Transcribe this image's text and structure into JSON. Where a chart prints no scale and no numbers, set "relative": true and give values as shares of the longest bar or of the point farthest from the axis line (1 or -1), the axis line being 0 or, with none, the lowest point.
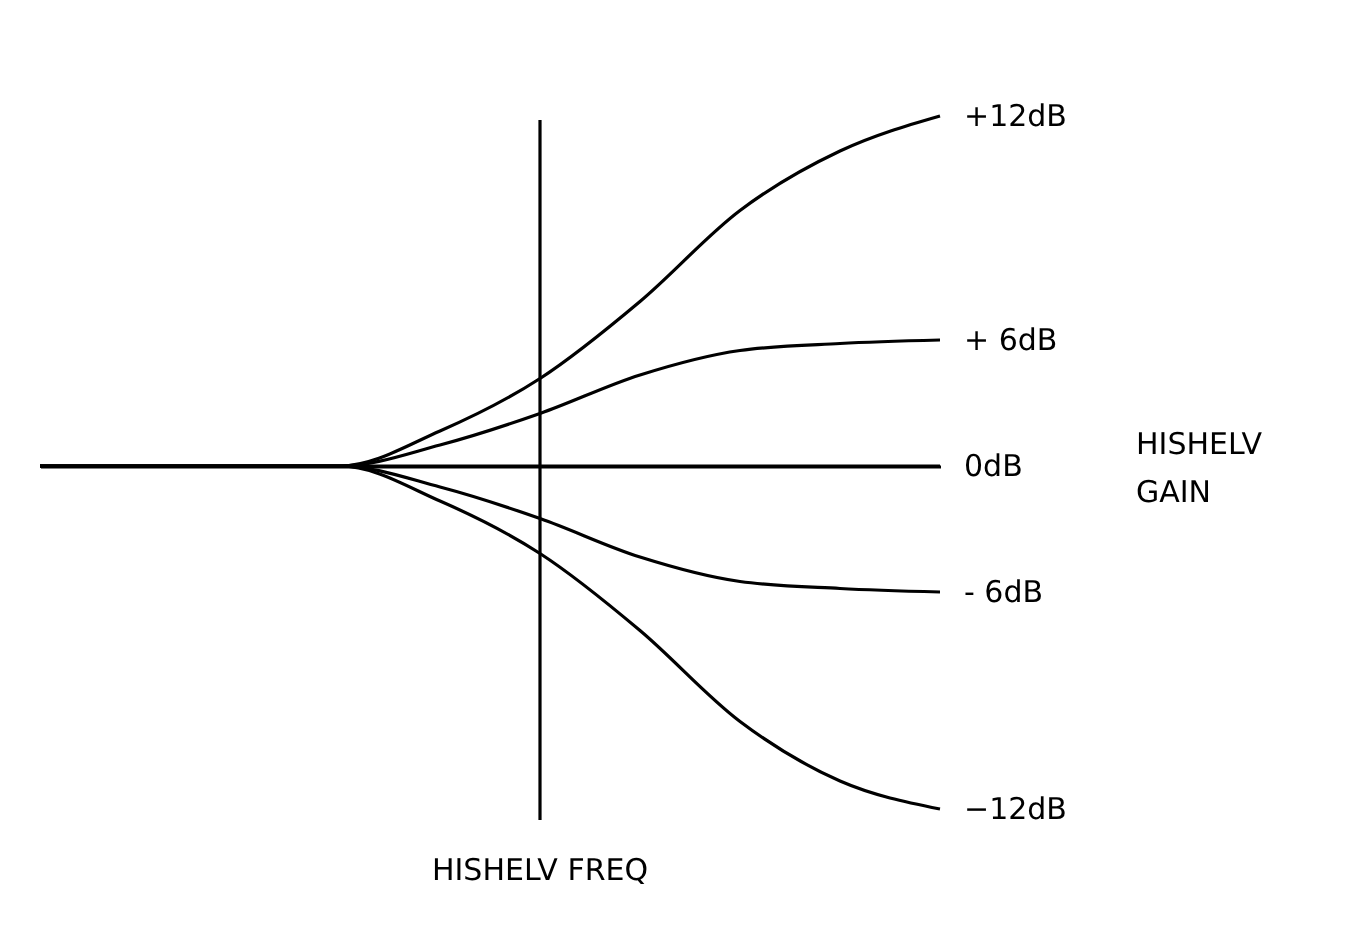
{
  "chart_data": {
    "type": "line",
    "relative": true,
    "marker": "none",
    "line_style": "solid",
    "legend_title": "HISHELV GAIN",
    "xlabel": "HISHELV FREQ",
    "categories": [
      null,
      null,
      null,
      null,
      null,
      null,
      null,
      null,
      null,
      null
    ],
    "series": [
      {
        "name": "+12dB",
        "color": "#000000",
        "values": [
          0,
          0,
          0,
          0,
          0.1,
          0.25,
          0.47,
          0.73,
          0.9,
          1
        ]
      },
      {
        "name": "+ 6dB",
        "color": "#000000",
        "values": [
          0,
          0,
          0,
          0,
          0.06,
          0.15,
          0.26,
          0.33,
          0.35,
          0.36
        ]
      },
      {
        "name": "0dB",
        "color": "#000000",
        "values": [
          0,
          0,
          0,
          0,
          0,
          0,
          0,
          0,
          0,
          0
        ]
      },
      {
        "name": "- 6dB",
        "color": "#000000",
        "values": [
          0,
          0,
          0,
          0,
          -0.06,
          -0.15,
          -0.26,
          -0.33,
          -0.35,
          -0.36
        ]
      },
      {
        "name": "−12dB",
        "color": "#000000",
        "values": [
          0,
          0,
          0,
          0,
          -0.1,
          -0.25,
          -0.47,
          -0.73,
          -0.9,
          -0.98
        ]
      }
    ]
  }
}
